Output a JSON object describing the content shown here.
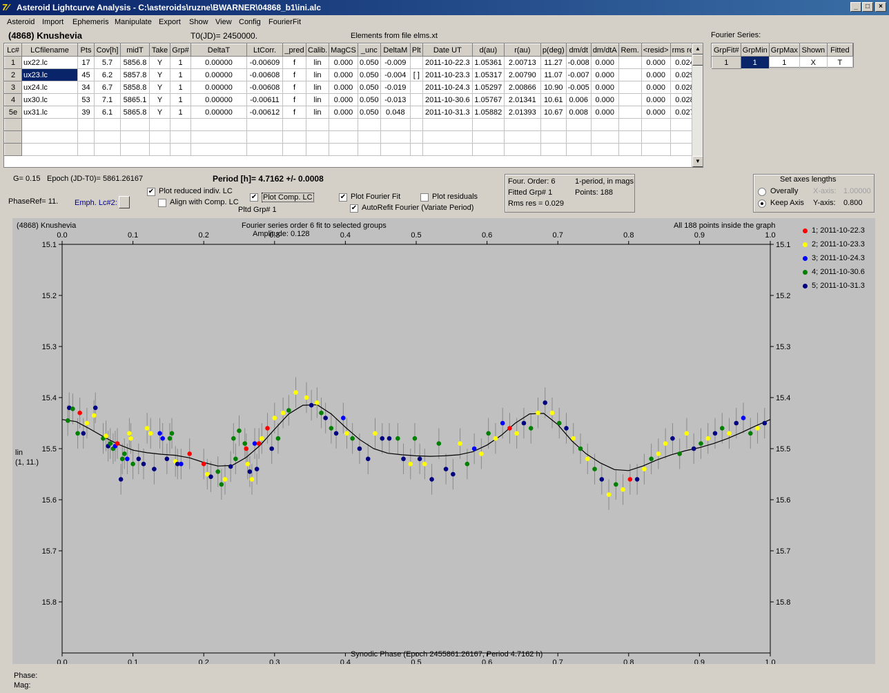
{
  "window": {
    "title": "Asteroid Lightcurve Analysis - C:\\asteroids\\ruzne\\BWARNER\\04868_b1\\ini.alc",
    "min": "_",
    "max": "□",
    "close": "×"
  },
  "menu": [
    "Asteroid",
    "Import",
    "Ephemeris",
    "Manipulate",
    "Export",
    "Show",
    "View",
    "Config",
    "FourierFit"
  ],
  "header": {
    "asteroid": "(4868) Knushevia",
    "t0": "T0(JD)= 2450000.",
    "elements": "Elements from file elms.xt"
  },
  "lc_table": {
    "columns": [
      "Lc#",
      "LCfilename",
      "Pts",
      "Cov[h]",
      "midT",
      "Take",
      "Grp#",
      "DeltaT",
      "LtCorr.",
      "_pred",
      "Calib.",
      "MagCS",
      "_unc",
      "DeltaM",
      "Plt",
      "Date UT",
      "d(au)",
      "r(au)",
      "p(deg)",
      "dm/dt",
      "dm/dtA",
      "Rem.",
      "<resid>",
      "rms res"
    ],
    "rows": [
      [
        "1",
        "ux22.lc",
        "17",
        "5.7",
        "5856.8",
        "Y",
        "1",
        "0.00000",
        "-0.00609",
        "f",
        "lin",
        "0.000",
        "0.050",
        "-0.009",
        "",
        "2011-10-22.3",
        "1.05361",
        "2.00713",
        "11.27",
        "-0.008",
        "0.000",
        "",
        "0.000",
        "0.024"
      ],
      [
        "2",
        "ux23.lc",
        "45",
        "6.2",
        "5857.8",
        "Y",
        "1",
        "0.00000",
        "-0.00608",
        "f",
        "lin",
        "0.000",
        "0.050",
        "-0.004",
        "[ ]",
        "2011-10-23.3",
        "1.05317",
        "2.00790",
        "11.07",
        "-0.007",
        "0.000",
        "",
        "0.000",
        "0.029"
      ],
      [
        "3",
        "ux24.lc",
        "34",
        "6.7",
        "5858.8",
        "Y",
        "1",
        "0.00000",
        "-0.00608",
        "f",
        "lin",
        "0.000",
        "0.050",
        "-0.019",
        "",
        "2011-10-24.3",
        "1.05297",
        "2.00866",
        "10.90",
        "-0.005",
        "0.000",
        "",
        "0.000",
        "0.028"
      ],
      [
        "4",
        "ux30.lc",
        "53",
        "7.1",
        "5865.1",
        "Y",
        "1",
        "0.00000",
        "-0.00611",
        "f",
        "lin",
        "0.000",
        "0.050",
        "-0.013",
        "",
        "2011-10-30.6",
        "1.05767",
        "2.01341",
        "10.61",
        "0.006",
        "0.000",
        "",
        "0.000",
        "0.028"
      ],
      [
        "5e",
        "ux31.lc",
        "39",
        "6.1",
        "5865.8",
        "Y",
        "1",
        "0.00000",
        "-0.00612",
        "f",
        "lin",
        "0.000",
        "0.050",
        "0.048",
        "",
        "2011-10-31.3",
        "1.05882",
        "2.01393",
        "10.67",
        "0.008",
        "0.000",
        "",
        "0.000",
        "0.027"
      ]
    ]
  },
  "fourier_series": {
    "label": "Fourier Series:",
    "columns": [
      "GrpFit#",
      "GrpMin",
      "GrpMax",
      "Shown",
      "Fitted"
    ],
    "row": [
      "1",
      "1",
      "1",
      "X",
      "T"
    ]
  },
  "info": {
    "g": "G= 0.15",
    "epoch": "Epoch (JD-T0)= 5861.26167",
    "period": "Period [h]= 4.7162 +/- 0.0008",
    "phaseref": "PhaseRef= 11.",
    "emph": "Emph. Lc#2:",
    "plot_reduced": "Plot reduced indiv. LC",
    "align": "Align with Comp. LC",
    "plot_comp": "Plot Comp. LC",
    "pltd_grp": "Pltd Grp#  1",
    "plot_fourier": "Plot Fourier Fit",
    "plot_resid": "Plot residuals",
    "autorefit": "AutoRefit Fourier (Variate Period)"
  },
  "fit_box": {
    "order": "Four. Order:  6",
    "fitted": "Fitted Grp# 1",
    "rms": "Rms res     = 0.029",
    "period_mode": "1-period, in mags",
    "points": "Points: 188"
  },
  "axes_box": {
    "title": "Set axes lengths",
    "overally": "Overally",
    "keep": "Keep Axis",
    "xaxis": "X-axis:",
    "xval": "1.00000",
    "yaxis": "Y-axis:",
    "yval": "0.800"
  },
  "footer": {
    "phase": "Phase:",
    "mag": "Mag:"
  },
  "chart_data": {
    "type": "scatter",
    "name": "(4868) Knushevia",
    "title": "Fourier series order 6 fit to selected groups",
    "subtitle": "Amplitude: 0.128",
    "note": "All 188 points inside the graph",
    "xlabel": "Synodic Phase (Epoch 2455861.26167, Period 4.7162 h)",
    "ylabel": "lin",
    "ylabel2": "(1, 11.)",
    "xlim": [
      0,
      1
    ],
    "ylim": [
      15.1,
      15.9
    ],
    "y_inverted": true,
    "xticks": [
      "0.0",
      "0.1",
      "0.2",
      "0.3",
      "0.4",
      "0.5",
      "0.6",
      "0.7",
      "0.8",
      "0.9",
      "1.0"
    ],
    "yticks": [
      "15.1",
      "15.2",
      "15.3",
      "15.4",
      "15.5",
      "15.6",
      "15.7",
      "15.8"
    ],
    "legend": [
      {
        "label": "1; 2011-10-22.3",
        "color": "#ff0000"
      },
      {
        "label": "2; 2011-10-23.3",
        "color": "#ffff00"
      },
      {
        "label": "3; 2011-10-24.3",
        "color": "#0000ff"
      },
      {
        "label": "4; 2011-10-30.6",
        "color": "#008000"
      },
      {
        "label": "5; 2011-10-31.3",
        "color": "#000080"
      }
    ],
    "fourier_curve": [
      [
        0.0,
        15.443
      ],
      [
        0.02,
        15.447
      ],
      [
        0.04,
        15.462
      ],
      [
        0.06,
        15.478
      ],
      [
        0.08,
        15.492
      ],
      [
        0.1,
        15.503
      ],
      [
        0.12,
        15.508
      ],
      [
        0.14,
        15.511
      ],
      [
        0.16,
        15.513
      ],
      [
        0.18,
        15.518
      ],
      [
        0.2,
        15.527
      ],
      [
        0.22,
        15.534
      ],
      [
        0.24,
        15.533
      ],
      [
        0.26,
        15.517
      ],
      [
        0.28,
        15.493
      ],
      [
        0.3,
        15.462
      ],
      [
        0.32,
        15.432
      ],
      [
        0.34,
        15.415
      ],
      [
        0.36,
        15.414
      ],
      [
        0.38,
        15.432
      ],
      [
        0.4,
        15.458
      ],
      [
        0.42,
        15.482
      ],
      [
        0.44,
        15.5
      ],
      [
        0.46,
        15.509
      ],
      [
        0.48,
        15.512
      ],
      [
        0.5,
        15.514
      ],
      [
        0.52,
        15.515
      ],
      [
        0.54,
        15.514
      ],
      [
        0.56,
        15.512
      ],
      [
        0.58,
        15.506
      ],
      [
        0.6,
        15.493
      ],
      [
        0.62,
        15.474
      ],
      [
        0.64,
        15.45
      ],
      [
        0.66,
        15.432
      ],
      [
        0.68,
        15.431
      ],
      [
        0.7,
        15.453
      ],
      [
        0.72,
        15.485
      ],
      [
        0.74,
        15.51
      ],
      [
        0.76,
        15.528
      ],
      [
        0.78,
        15.541
      ],
      [
        0.8,
        15.543
      ],
      [
        0.82,
        15.534
      ],
      [
        0.84,
        15.522
      ],
      [
        0.86,
        15.512
      ],
      [
        0.88,
        15.504
      ],
      [
        0.9,
        15.498
      ],
      [
        0.92,
        15.49
      ],
      [
        0.94,
        15.48
      ],
      [
        0.96,
        15.468
      ],
      [
        0.98,
        15.455
      ],
      [
        1.0,
        15.443
      ]
    ],
    "points": [
      [
        0.008,
        15.445,
        3
      ],
      [
        0.01,
        15.42,
        4
      ],
      [
        0.015,
        15.422,
        3
      ],
      [
        0.022,
        15.47,
        3
      ],
      [
        0.025,
        15.43,
        0
      ],
      [
        0.03,
        15.47,
        4
      ],
      [
        0.035,
        15.45,
        1
      ],
      [
        0.045,
        15.435,
        1
      ],
      [
        0.047,
        15.42,
        4
      ],
      [
        0.058,
        15.48,
        3
      ],
      [
        0.062,
        15.475,
        1
      ],
      [
        0.065,
        15.495,
        4
      ],
      [
        0.068,
        15.49,
        3
      ],
      [
        0.072,
        15.5,
        3
      ],
      [
        0.075,
        15.495,
        2
      ],
      [
        0.078,
        15.49,
        0
      ],
      [
        0.083,
        15.56,
        4
      ],
      [
        0.085,
        15.52,
        3
      ],
      [
        0.088,
        15.51,
        3
      ],
      [
        0.092,
        15.52,
        2
      ],
      [
        0.095,
        15.47,
        1
      ],
      [
        0.097,
        15.48,
        1
      ],
      [
        0.1,
        15.53,
        3
      ],
      [
        0.108,
        15.52,
        4
      ],
      [
        0.115,
        15.53,
        4
      ],
      [
        0.12,
        15.46,
        1
      ],
      [
        0.125,
        15.47,
        1
      ],
      [
        0.13,
        15.54,
        4
      ],
      [
        0.138,
        15.47,
        2
      ],
      [
        0.142,
        15.48,
        2
      ],
      [
        0.148,
        15.52,
        4
      ],
      [
        0.152,
        15.48,
        3
      ],
      [
        0.155,
        15.47,
        3
      ],
      [
        0.16,
        15.525,
        1
      ],
      [
        0.163,
        15.53,
        4
      ],
      [
        0.168,
        15.53,
        2
      ],
      [
        0.18,
        15.51,
        0
      ],
      [
        0.2,
        15.53,
        0
      ],
      [
        0.205,
        15.55,
        1
      ],
      [
        0.21,
        15.555,
        4
      ],
      [
        0.22,
        15.545,
        3
      ],
      [
        0.225,
        15.57,
        3
      ],
      [
        0.23,
        15.56,
        1
      ],
      [
        0.238,
        15.535,
        4
      ],
      [
        0.242,
        15.48,
        3
      ],
      [
        0.245,
        15.52,
        3
      ],
      [
        0.25,
        15.465,
        3
      ],
      [
        0.258,
        15.49,
        3
      ],
      [
        0.26,
        15.5,
        0
      ],
      [
        0.262,
        15.53,
        1
      ],
      [
        0.265,
        15.545,
        4
      ],
      [
        0.268,
        15.56,
        1
      ],
      [
        0.272,
        15.49,
        2
      ],
      [
        0.275,
        15.54,
        4
      ],
      [
        0.278,
        15.49,
        0
      ],
      [
        0.282,
        15.48,
        1
      ],
      [
        0.29,
        15.46,
        0
      ],
      [
        0.296,
        15.5,
        4
      ],
      [
        0.3,
        15.44,
        1
      ],
      [
        0.305,
        15.48,
        3
      ],
      [
        0.312,
        15.43,
        1
      ],
      [
        0.32,
        15.425,
        3
      ],
      [
        0.33,
        15.39,
        1
      ],
      [
        0.345,
        15.4,
        1
      ],
      [
        0.352,
        15.415,
        4
      ],
      [
        0.36,
        15.41,
        1
      ],
      [
        0.366,
        15.43,
        3
      ],
      [
        0.372,
        15.44,
        4
      ],
      [
        0.38,
        15.46,
        3
      ],
      [
        0.387,
        15.47,
        4
      ],
      [
        0.397,
        15.44,
        2
      ],
      [
        0.402,
        15.47,
        1
      ],
      [
        0.41,
        15.48,
        3
      ],
      [
        0.42,
        15.5,
        4
      ],
      [
        0.432,
        15.52,
        4
      ],
      [
        0.442,
        15.47,
        1
      ],
      [
        0.452,
        15.48,
        4
      ],
      [
        0.462,
        15.48,
        4
      ],
      [
        0.474,
        15.48,
        3
      ],
      [
        0.482,
        15.52,
        4
      ],
      [
        0.492,
        15.53,
        1
      ],
      [
        0.498,
        15.48,
        3
      ],
      [
        0.505,
        15.52,
        4
      ],
      [
        0.512,
        15.53,
        1
      ],
      [
        0.522,
        15.56,
        4
      ],
      [
        0.532,
        15.49,
        3
      ],
      [
        0.542,
        15.54,
        4
      ],
      [
        0.552,
        15.55,
        4
      ],
      [
        0.562,
        15.49,
        1
      ],
      [
        0.572,
        15.53,
        3
      ],
      [
        0.582,
        15.5,
        2
      ],
      [
        0.592,
        15.51,
        1
      ],
      [
        0.602,
        15.47,
        3
      ],
      [
        0.612,
        15.48,
        1
      ],
      [
        0.622,
        15.45,
        2
      ],
      [
        0.632,
        15.46,
        0
      ],
      [
        0.642,
        15.47,
        1
      ],
      [
        0.652,
        15.45,
        4
      ],
      [
        0.662,
        15.46,
        3
      ],
      [
        0.672,
        15.43,
        1
      ],
      [
        0.682,
        15.41,
        4
      ],
      [
        0.692,
        15.43,
        1
      ],
      [
        0.702,
        15.45,
        3
      ],
      [
        0.712,
        15.46,
        4
      ],
      [
        0.722,
        15.48,
        1
      ],
      [
        0.732,
        15.5,
        3
      ],
      [
        0.742,
        15.52,
        1
      ],
      [
        0.752,
        15.54,
        3
      ],
      [
        0.762,
        15.56,
        4
      ],
      [
        0.772,
        15.59,
        1
      ],
      [
        0.782,
        15.57,
        3
      ],
      [
        0.792,
        15.58,
        1
      ],
      [
        0.802,
        15.56,
        0
      ],
      [
        0.812,
        15.56,
        4
      ],
      [
        0.822,
        15.54,
        1
      ],
      [
        0.832,
        15.52,
        3
      ],
      [
        0.842,
        15.51,
        1
      ],
      [
        0.852,
        15.49,
        1
      ],
      [
        0.862,
        15.48,
        4
      ],
      [
        0.872,
        15.51,
        3
      ],
      [
        0.882,
        15.47,
        1
      ],
      [
        0.892,
        15.5,
        4
      ],
      [
        0.902,
        15.49,
        3
      ],
      [
        0.912,
        15.48,
        1
      ],
      [
        0.922,
        15.47,
        4
      ],
      [
        0.932,
        15.46,
        3
      ],
      [
        0.942,
        15.47,
        1
      ],
      [
        0.952,
        15.45,
        4
      ],
      [
        0.962,
        15.44,
        2
      ],
      [
        0.972,
        15.47,
        3
      ],
      [
        0.982,
        15.46,
        1
      ],
      [
        0.992,
        15.45,
        4
      ]
    ]
  }
}
